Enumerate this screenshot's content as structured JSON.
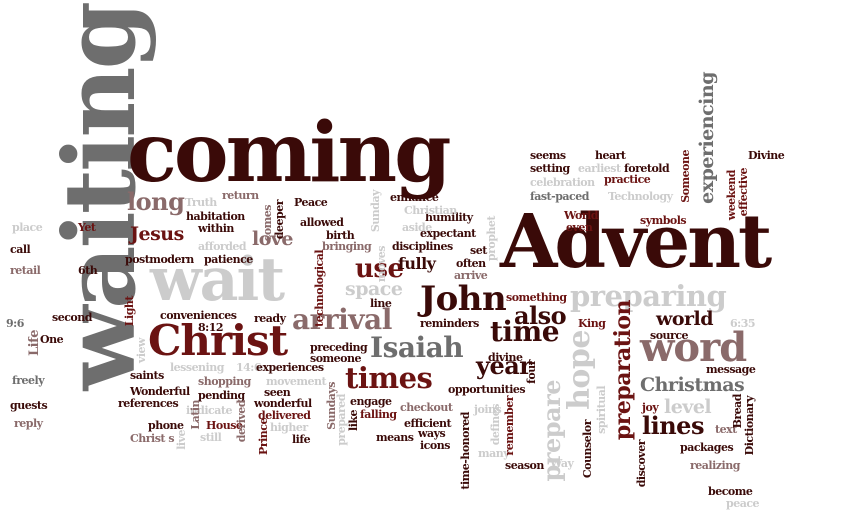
{
  "palette": {
    "dark": "#3a0a08",
    "red": "#6b1312",
    "gray": "#6e6e6e",
    "mid": "#8a6a6a",
    "light": "#cccccc"
  },
  "words": [
    {
      "id": "waiting",
      "text": "waiting",
      "color": "gray"
    },
    {
      "id": "coming",
      "text": "coming",
      "color": "dark"
    },
    {
      "id": "advent",
      "text": "Advent",
      "color": "dark"
    },
    {
      "id": "wait",
      "text": "wait",
      "color": "light"
    },
    {
      "id": "christ",
      "text": "Christ",
      "color": "red"
    },
    {
      "id": "word",
      "text": "word",
      "color": "mid"
    },
    {
      "id": "john",
      "text": "John",
      "color": "dark"
    },
    {
      "id": "times",
      "text": "times",
      "color": "red"
    },
    {
      "id": "isaiah",
      "text": "Isaiah",
      "color": "gray"
    },
    {
      "id": "arrival",
      "text": "arrival",
      "color": "mid"
    },
    {
      "id": "preparing",
      "text": "preparing",
      "color": "light"
    },
    {
      "id": "hope",
      "text": "hope",
      "color": "light"
    },
    {
      "id": "preparation",
      "text": "preparation",
      "color": "red"
    },
    {
      "id": "time",
      "text": "time",
      "color": "dark"
    },
    {
      "id": "use",
      "text": "use",
      "color": "red"
    },
    {
      "id": "fully",
      "text": "fully",
      "color": "dark"
    },
    {
      "id": "also",
      "text": "also",
      "color": "dark"
    },
    {
      "id": "year",
      "text": "year",
      "color": "dark"
    },
    {
      "id": "christmas",
      "text": "Christmas",
      "color": "gray"
    },
    {
      "id": "lines",
      "text": "lines",
      "color": "dark"
    },
    {
      "id": "level",
      "text": "level",
      "color": "light"
    },
    {
      "id": "world",
      "text": "world",
      "color": "dark"
    },
    {
      "id": "prepare",
      "text": "prepare",
      "color": "light"
    },
    {
      "id": "long",
      "text": "long",
      "color": "mid"
    },
    {
      "id": "jesus",
      "text": "Jesus",
      "color": "red"
    },
    {
      "id": "love",
      "text": "love",
      "color": "mid"
    },
    {
      "id": "space",
      "text": "space",
      "color": "light"
    },
    {
      "id": "experiencing",
      "text": "experiencing",
      "color": "gray"
    },
    {
      "id": "seems",
      "text": "seems",
      "color": "dark"
    },
    {
      "id": "heart",
      "text": "heart",
      "color": "dark"
    },
    {
      "id": "setting",
      "text": "setting",
      "color": "dark"
    },
    {
      "id": "earliest",
      "text": "earliest",
      "color": "light"
    },
    {
      "id": "foretold",
      "text": "foretold",
      "color": "dark"
    },
    {
      "id": "celebration",
      "text": "celebration",
      "color": "light"
    },
    {
      "id": "practice",
      "text": "practice",
      "color": "red"
    },
    {
      "id": "fast-paced",
      "text": "fast-paced",
      "color": "gray"
    },
    {
      "id": "technology-1",
      "text": "Technology",
      "color": "light"
    },
    {
      "id": "world-2",
      "text": "World",
      "color": "red"
    },
    {
      "id": "even",
      "text": "even",
      "color": "red"
    },
    {
      "id": "symbols",
      "text": "symbols",
      "color": "red"
    },
    {
      "id": "someone-v",
      "text": "Someone",
      "color": "red"
    },
    {
      "id": "weekend",
      "text": "weekend",
      "color": "red"
    },
    {
      "id": "effective",
      "text": "effective",
      "color": "red"
    },
    {
      "id": "divine-1",
      "text": "Divine",
      "color": "dark"
    },
    {
      "id": "enhance",
      "text": "enhance",
      "color": "dark"
    },
    {
      "id": "humility",
      "text": "humility",
      "color": "dark"
    },
    {
      "id": "peace",
      "text": "Peace",
      "color": "dark"
    },
    {
      "id": "truth",
      "text": "Truth",
      "color": "light"
    },
    {
      "id": "return",
      "text": "return",
      "color": "mid"
    },
    {
      "id": "habitation",
      "text": "habitation",
      "color": "dark"
    },
    {
      "id": "within",
      "text": "within",
      "color": "dark"
    },
    {
      "id": "afforded",
      "text": "afforded",
      "color": "light"
    },
    {
      "id": "patience",
      "text": "patience",
      "color": "dark"
    },
    {
      "id": "allowed",
      "text": "allowed",
      "color": "dark"
    },
    {
      "id": "birth",
      "text": "birth",
      "color": "dark"
    },
    {
      "id": "bringing",
      "text": "bringing",
      "color": "mid"
    },
    {
      "id": "aside",
      "text": "aside",
      "color": "light"
    },
    {
      "id": "expectant",
      "text": "expectant",
      "color": "dark"
    },
    {
      "id": "disciplines",
      "text": "disciplines",
      "color": "dark"
    },
    {
      "id": "set",
      "text": "set",
      "color": "dark"
    },
    {
      "id": "often",
      "text": "often",
      "color": "dark"
    },
    {
      "id": "arrive",
      "text": "arrive",
      "color": "mid"
    },
    {
      "id": "christian",
      "text": "Christian",
      "color": "light"
    },
    {
      "id": "something",
      "text": "something",
      "color": "red"
    },
    {
      "id": "place",
      "text": "place",
      "color": "light"
    },
    {
      "id": "yet",
      "text": "Yet",
      "color": "red"
    },
    {
      "id": "call",
      "text": "call",
      "color": "dark"
    },
    {
      "id": "retail",
      "text": "retail",
      "color": "mid"
    },
    {
      "id": "6th",
      "text": "6th",
      "color": "dark"
    },
    {
      "id": "postmodern",
      "text": "postmodern",
      "color": "dark"
    },
    {
      "id": "light-word",
      "text": "Light",
      "color": "red"
    },
    {
      "id": "9-6",
      "text": "9:6",
      "color": "gray"
    },
    {
      "id": "second",
      "text": "second",
      "color": "dark"
    },
    {
      "id": "life-1",
      "text": "Life",
      "color": "mid"
    },
    {
      "id": "one",
      "text": "One",
      "color": "dark"
    },
    {
      "id": "freely",
      "text": "freely",
      "color": "gray"
    },
    {
      "id": "guests",
      "text": "guests",
      "color": "dark"
    },
    {
      "id": "reply",
      "text": "reply",
      "color": "mid"
    },
    {
      "id": "conveniences",
      "text": "conveniences",
      "color": "dark"
    },
    {
      "id": "8-12",
      "text": "8:12",
      "color": "dark"
    },
    {
      "id": "ready",
      "text": "ready",
      "color": "dark"
    },
    {
      "id": "lessening",
      "text": "lessening",
      "color": "light"
    },
    {
      "id": "14-6",
      "text": "14:6",
      "color": "light"
    },
    {
      "id": "line",
      "text": "line",
      "color": "dark"
    },
    {
      "id": "preceding",
      "text": "preceding",
      "color": "dark"
    },
    {
      "id": "someone-2",
      "text": "someone",
      "color": "dark"
    },
    {
      "id": "experiences",
      "text": "experiences",
      "color": "dark"
    },
    {
      "id": "movement",
      "text": "movement",
      "color": "light"
    },
    {
      "id": "seen",
      "text": "seen",
      "color": "dark"
    },
    {
      "id": "wonderful-2",
      "text": "wonderful",
      "color": "dark"
    },
    {
      "id": "delivered",
      "text": "delivered",
      "color": "red"
    },
    {
      "id": "saints",
      "text": "saints",
      "color": "dark"
    },
    {
      "id": "shopping",
      "text": "shopping",
      "color": "mid"
    },
    {
      "id": "wonderful-1",
      "text": "Wonderful",
      "color": "dark"
    },
    {
      "id": "pending",
      "text": "pending",
      "color": "dark"
    },
    {
      "id": "references",
      "text": "references",
      "color": "dark"
    },
    {
      "id": "indicate",
      "text": "indicate",
      "color": "light"
    },
    {
      "id": "phone",
      "text": "phone",
      "color": "dark"
    },
    {
      "id": "house",
      "text": "House",
      "color": "red"
    },
    {
      "id": "christs",
      "text": "Christ s",
      "color": "mid"
    },
    {
      "id": "still",
      "text": "still",
      "color": "light"
    },
    {
      "id": "higher",
      "text": "higher",
      "color": "light"
    },
    {
      "id": "life-2",
      "text": "life",
      "color": "dark"
    },
    {
      "id": "reminders",
      "text": "reminders",
      "color": "dark"
    },
    {
      "id": "opportunities",
      "text": "opportunities",
      "color": "dark"
    },
    {
      "id": "engage",
      "text": "engage",
      "color": "dark"
    },
    {
      "id": "falling",
      "text": "falling",
      "color": "red"
    },
    {
      "id": "checkout",
      "text": "checkout",
      "color": "mid"
    },
    {
      "id": "joins",
      "text": "joins",
      "color": "light"
    },
    {
      "id": "means",
      "text": "means",
      "color": "dark"
    },
    {
      "id": "ways",
      "text": "ways",
      "color": "dark"
    },
    {
      "id": "efficient",
      "text": "efficient",
      "color": "dark"
    },
    {
      "id": "icons",
      "text": "icons",
      "color": "dark"
    },
    {
      "id": "divine-2",
      "text": "divine",
      "color": "dark"
    },
    {
      "id": "many",
      "text": "many",
      "color": "light"
    },
    {
      "id": "season",
      "text": "season",
      "color": "dark"
    },
    {
      "id": "way",
      "text": "Way",
      "color": "light"
    },
    {
      "id": "king",
      "text": "King",
      "color": "red"
    },
    {
      "id": "source",
      "text": "source",
      "color": "dark"
    },
    {
      "id": "6-35",
      "text": "6:35",
      "color": "light"
    },
    {
      "id": "message",
      "text": "message",
      "color": "dark"
    },
    {
      "id": "joy",
      "text": "joy",
      "color": "red"
    },
    {
      "id": "text",
      "text": "text",
      "color": "mid"
    },
    {
      "id": "packages",
      "text": "packages",
      "color": "dark"
    },
    {
      "id": "realizing",
      "text": "realizing",
      "color": "mid"
    },
    {
      "id": "dictionary",
      "text": "Dictionary",
      "color": "dark"
    },
    {
      "id": "become",
      "text": "become",
      "color": "dark"
    },
    {
      "id": "peace-2",
      "text": "peace",
      "color": "light"
    },
    {
      "id": "counselor",
      "text": "Counselor",
      "color": "dark"
    },
    {
      "id": "discover",
      "text": "discover",
      "color": "dark"
    },
    {
      "id": "bread",
      "text": "Bread",
      "color": "dark"
    },
    {
      "id": "spiritual",
      "text": "spiritual",
      "color": "light"
    },
    {
      "id": "defines",
      "text": "defines",
      "color": "light"
    },
    {
      "id": "remember",
      "text": "remember",
      "color": "red"
    },
    {
      "id": "time-honored",
      "text": "time-honored",
      "color": "dark"
    },
    {
      "id": "four",
      "text": "four",
      "color": "dark"
    },
    {
      "id": "prophet",
      "text": "prophet",
      "color": "light"
    },
    {
      "id": "technological",
      "text": "technological",
      "color": "red"
    },
    {
      "id": "sunday",
      "text": "Sunday",
      "color": "light"
    },
    {
      "id": "deeper",
      "text": "deeper",
      "color": "dark"
    },
    {
      "id": "comes",
      "text": "comes",
      "color": "mid"
    },
    {
      "id": "moves",
      "text": "moves",
      "color": "light"
    },
    {
      "id": "sundays",
      "text": "Sundays",
      "color": "mid"
    },
    {
      "id": "prepared",
      "text": "prepared",
      "color": "light"
    },
    {
      "id": "like",
      "text": "like",
      "color": "dark"
    },
    {
      "id": "derived",
      "text": "derived",
      "color": "mid"
    },
    {
      "id": "prince",
      "text": "Prince",
      "color": "red"
    },
    {
      "id": "latin",
      "text": "Latin",
      "color": "mid"
    },
    {
      "id": "live",
      "text": "live",
      "color": "light"
    },
    {
      "id": "view",
      "text": "view",
      "color": "light"
    }
  ]
}
